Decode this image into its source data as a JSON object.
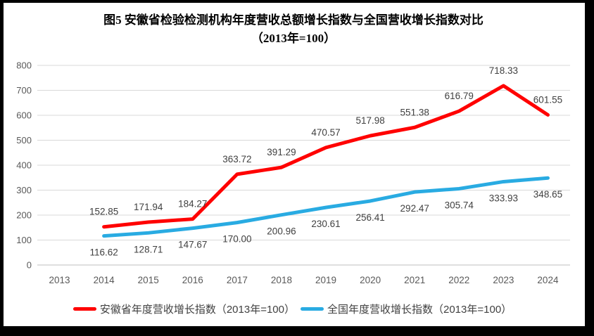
{
  "title": {
    "line1": "图5  安徽省检验检测机构年度营收总额增长指数与全国营收增长指数对比",
    "line2": "（2013年=100）"
  },
  "chart_data": {
    "type": "line",
    "categories": [
      "2013",
      "2014",
      "2015",
      "2016",
      "2017",
      "2018",
      "2019",
      "2020",
      "2021",
      "2022",
      "2023",
      "2024"
    ],
    "series": [
      {
        "name": "安徽省年度营收增长指数（2013年=100）",
        "color": "#FF0000",
        "label_position": "above",
        "values": [
          null,
          152.85,
          171.94,
          184.27,
          363.72,
          391.29,
          470.57,
          517.98,
          551.38,
          616.79,
          718.33,
          601.55
        ]
      },
      {
        "name": "全国年度营收增长指数（2013年=100）",
        "color": "#29ABE2",
        "label_position": "below",
        "values": [
          null,
          116.62,
          128.71,
          147.67,
          170.0,
          200.96,
          230.61,
          256.41,
          292.47,
          305.74,
          333.93,
          348.65
        ]
      }
    ],
    "ylim": [
      0,
      800
    ],
    "ytick_interval": 100,
    "yticks": [
      "0",
      "100",
      "200",
      "300",
      "400",
      "500",
      "600",
      "700",
      "800"
    ],
    "grid": true,
    "legend_position": "bottom",
    "gridline_color": "#D9D9D9",
    "axis_line_color": "#BFBFBF",
    "axis_label_color": "#595959",
    "data_label_color": "#404040"
  }
}
